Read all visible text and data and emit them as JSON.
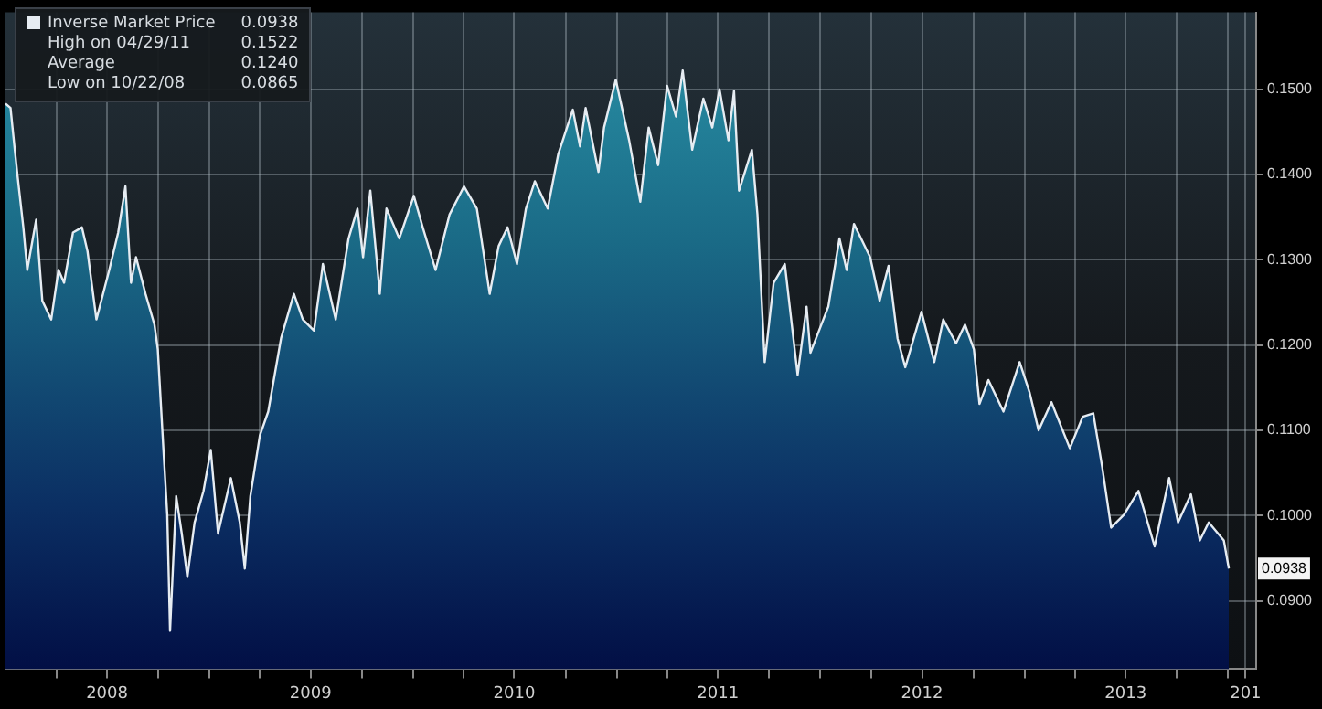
{
  "chart_data": {
    "type": "area",
    "x": [
      "2008-01-01",
      "2008-01-10",
      "2008-01-17",
      "2008-01-23",
      "2008-02-02",
      "2008-02-09",
      "2008-02-25",
      "2008-03-07",
      "2008-03-23",
      "2008-04-05",
      "2008-04-15",
      "2008-05-01",
      "2008-05-17",
      "2008-05-27",
      "2008-06-12",
      "2008-07-05",
      "2008-07-21",
      "2008-08-03",
      "2008-08-13",
      "2008-08-22",
      "2008-09-08",
      "2008-09-24",
      "2008-09-30",
      "2008-10-10",
      "2008-10-17",
      "2008-10-22",
      "2008-11-02",
      "2008-11-12",
      "2008-11-22",
      "2008-12-05",
      "2008-12-21",
      "2009-01-03",
      "2009-01-16",
      "2009-02-08",
      "2009-02-24",
      "2009-03-05",
      "2009-03-15",
      "2009-04-01",
      "2009-04-16",
      "2009-05-09",
      "2009-06-01",
      "2009-06-17",
      "2009-07-07",
      "2009-07-23",
      "2009-08-15",
      "2009-09-07",
      "2009-09-23",
      "2009-10-03",
      "2009-10-16",
      "2009-11-02",
      "2009-11-14",
      "2009-12-07",
      "2010-01-02",
      "2010-01-18",
      "2010-02-10",
      "2010-03-07",
      "2010-04-02",
      "2010-04-25",
      "2010-05-18",
      "2010-06-03",
      "2010-06-19",
      "2010-07-06",
      "2010-07-22",
      "2010-08-07",
      "2010-08-30",
      "2010-09-18",
      "2010-10-14",
      "2010-10-27",
      "2010-11-06",
      "2010-11-29",
      "2010-12-09",
      "2010-12-30",
      "2011-01-23",
      "2011-02-12",
      "2011-02-27",
      "2011-03-16",
      "2011-04-01",
      "2011-04-17",
      "2011-04-29",
      "2011-05-16",
      "2011-06-05",
      "2011-06-21",
      "2011-07-04",
      "2011-07-20",
      "2011-07-30",
      "2011-08-08",
      "2011-08-31",
      "2011-09-10",
      "2011-09-23",
      "2011-10-09",
      "2011-10-29",
      "2011-11-21",
      "2011-12-07",
      "2011-12-14",
      "2012-01-15",
      "2012-02-04",
      "2012-02-17",
      "2012-03-01",
      "2012-03-30",
      "2012-04-16",
      "2012-05-02",
      "2012-05-18",
      "2012-06-01",
      "2012-06-30",
      "2012-07-23",
      "2012-08-08",
      "2012-08-31",
      "2012-09-16",
      "2012-10-02",
      "2012-10-12",
      "2012-10-28",
      "2012-11-24",
      "2012-12-23",
      "2013-01-10",
      "2013-01-26",
      "2013-02-18",
      "2013-03-23",
      "2013-04-15",
      "2013-05-04",
      "2013-05-20",
      "2013-06-05",
      "2013-06-28",
      "2013-07-24",
      "2013-08-22",
      "2013-09-17",
      "2013-10-03",
      "2013-10-26",
      "2013-11-11",
      "2013-11-27",
      "2013-12-24",
      "2014-01-02"
    ],
    "series": [
      {
        "name": "Inverse Market Price",
        "color": "#e6ecf2",
        "values": [
          0.1483,
          0.1478,
          0.1433,
          0.1396,
          0.1338,
          0.1288,
          0.1347,
          0.1252,
          0.123,
          0.1288,
          0.1273,
          0.1332,
          0.1338,
          0.131,
          0.123,
          0.1288,
          0.1332,
          0.1386,
          0.1273,
          0.1303,
          0.126,
          0.1224,
          0.1195,
          0.1079,
          0.1001,
          0.0865,
          0.1023,
          0.0979,
          0.0928,
          0.0992,
          0.1029,
          0.1077,
          0.0979,
          0.1044,
          0.0992,
          0.0938,
          0.1023,
          0.1094,
          0.1122,
          0.1208,
          0.126,
          0.123,
          0.1217,
          0.1295,
          0.123,
          0.1325,
          0.136,
          0.1303,
          0.1381,
          0.126,
          0.136,
          0.1325,
          0.1375,
          0.1338,
          0.1288,
          0.1353,
          0.1386,
          0.136,
          0.126,
          0.1316,
          0.1338,
          0.1295,
          0.136,
          0.1392,
          0.136,
          0.1424,
          0.1476,
          0.1433,
          0.1478,
          0.1403,
          0.1455,
          0.1511,
          0.144,
          0.1368,
          0.1455,
          0.1411,
          0.1504,
          0.1468,
          0.1522,
          0.1429,
          0.1489,
          0.1455,
          0.15,
          0.144,
          0.1498,
          0.1381,
          0.1429,
          0.1353,
          0.118,
          0.1273,
          0.1295,
          0.1165,
          0.1245,
          0.1191,
          0.1245,
          0.1325,
          0.1288,
          0.1342,
          0.1303,
          0.1252,
          0.1293,
          0.1208,
          0.1174,
          0.1239,
          0.118,
          0.123,
          0.1202,
          0.1224,
          0.1195,
          0.1131,
          0.1159,
          0.1122,
          0.118,
          0.1144,
          0.11,
          0.1133,
          0.1079,
          0.1116,
          0.112,
          0.1057,
          0.0986,
          0.1001,
          0.1029,
          0.0964,
          0.1044,
          0.0992,
          0.1025,
          0.0971,
          0.0992,
          0.0971,
          0.0938
        ]
      }
    ],
    "xlim": [
      "2008-01-01",
      "2014-02-20"
    ],
    "xticks": [
      {
        "value": "2008-04-01",
        "label": null
      },
      {
        "value": "2008-07-01",
        "label": "2008"
      },
      {
        "value": "2008-10-01",
        "label": null
      },
      {
        "value": "2009-01-01",
        "label": null
      },
      {
        "value": "2009-04-01",
        "label": null
      },
      {
        "value": "2009-07-01",
        "label": "2009"
      },
      {
        "value": "2009-10-01",
        "label": null
      },
      {
        "value": "2010-01-01",
        "label": null
      },
      {
        "value": "2010-04-01",
        "label": null
      },
      {
        "value": "2010-07-01",
        "label": "2010"
      },
      {
        "value": "2010-10-01",
        "label": null
      },
      {
        "value": "2011-01-01",
        "label": null
      },
      {
        "value": "2011-04-01",
        "label": null
      },
      {
        "value": "2011-07-01",
        "label": "2011"
      },
      {
        "value": "2011-10-01",
        "label": null
      },
      {
        "value": "2012-01-01",
        "label": null
      },
      {
        "value": "2012-04-01",
        "label": null
      },
      {
        "value": "2012-07-01",
        "label": "2012"
      },
      {
        "value": "2012-10-01",
        "label": null
      },
      {
        "value": "2013-01-01",
        "label": null
      },
      {
        "value": "2013-04-01",
        "label": null
      },
      {
        "value": "2013-07-01",
        "label": "2013"
      },
      {
        "value": "2013-10-01",
        "label": null
      },
      {
        "value": "2014-01-01",
        "label": null
      },
      {
        "value": "2014-02-01",
        "label": "201"
      }
    ],
    "ylim": [
      0.082,
      0.159
    ],
    "yticks": [
      {
        "value": 0.09,
        "label": "0.0900"
      },
      {
        "value": 0.1,
        "label": "0.1000"
      },
      {
        "value": 0.11,
        "label": "0.1100"
      },
      {
        "value": 0.12,
        "label": "0.1200"
      },
      {
        "value": 0.13,
        "label": "0.1300"
      },
      {
        "value": 0.14,
        "label": "0.1400"
      },
      {
        "value": 0.15,
        "label": "0.1500"
      }
    ],
    "grid": true,
    "legend": "top left",
    "annotations": [
      {
        "text": "0.0938",
        "x": "2014-01-02",
        "y": 0.0938
      },
      "High on 04/29/11 0.1522",
      "Average 0.1240",
      "Low on 10/22/08 0.0865"
    ]
  }
}
